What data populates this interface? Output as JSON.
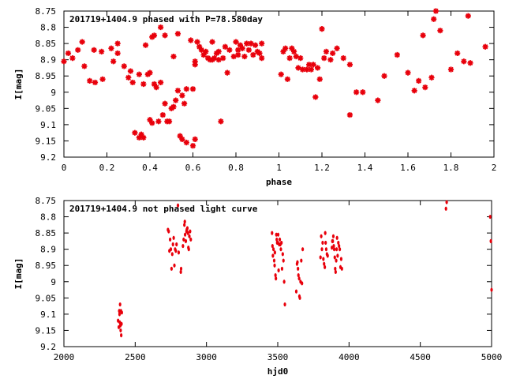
{
  "chart_data": [
    {
      "type": "scatter",
      "title": "201719+1404.9 phased with P=78.580day",
      "xlabel": "phase",
      "ylabel": "I[mag]",
      "xlim": [
        0,
        2
      ],
      "ylim": [
        8.75,
        9.2
      ],
      "y_inverted": true,
      "x_ticks": [
        "0",
        "0.2",
        "0.4",
        "0.6",
        "0.8",
        "1",
        "1.2",
        "1.4",
        "1.6",
        "1.8",
        "2"
      ],
      "y_ticks": [
        "8.75",
        "8.8",
        "8.85",
        "8.9",
        "8.95",
        "9",
        "9.05",
        "9.1",
        "9.15",
        "9.2"
      ],
      "grid": false,
      "marker": "asterisk",
      "color": "#e8000b",
      "points": [
        [
          0.0,
          8.905
        ],
        [
          0.02,
          8.88
        ],
        [
          0.04,
          8.895
        ],
        [
          0.065,
          8.87
        ],
        [
          0.085,
          8.845
        ],
        [
          0.095,
          8.92
        ],
        [
          0.12,
          8.965
        ],
        [
          0.14,
          8.87
        ],
        [
          0.145,
          8.97
        ],
        [
          0.175,
          8.875
        ],
        [
          0.18,
          8.96
        ],
        [
          0.22,
          8.865
        ],
        [
          0.23,
          8.905
        ],
        [
          0.25,
          8.85
        ],
        [
          0.25,
          8.88
        ],
        [
          0.28,
          8.92
        ],
        [
          0.3,
          8.955
        ],
        [
          0.31,
          8.935
        ],
        [
          0.32,
          8.97
        ],
        [
          0.33,
          9.125
        ],
        [
          0.35,
          8.945
        ],
        [
          0.35,
          9.14
        ],
        [
          0.36,
          9.13
        ],
        [
          0.37,
          8.975
        ],
        [
          0.37,
          9.14
        ],
        [
          0.38,
          8.855
        ],
        [
          0.39,
          8.945
        ],
        [
          0.4,
          8.94
        ],
        [
          0.4,
          9.085
        ],
        [
          0.41,
          8.83
        ],
        [
          0.41,
          9.095
        ],
        [
          0.42,
          8.825
        ],
        [
          0.42,
          8.975
        ],
        [
          0.43,
          8.985
        ],
        [
          0.44,
          9.09
        ],
        [
          0.45,
          8.97
        ],
        [
          0.45,
          8.8
        ],
        [
          0.46,
          9.07
        ],
        [
          0.47,
          8.825
        ],
        [
          0.47,
          9.035
        ],
        [
          0.48,
          9.09
        ],
        [
          0.49,
          9.09
        ],
        [
          0.5,
          9.05
        ],
        [
          0.51,
          9.045
        ],
        [
          0.51,
          8.89
        ],
        [
          0.52,
          9.025
        ],
        [
          0.53,
          8.82
        ],
        [
          0.53,
          8.995
        ],
        [
          0.54,
          9.135
        ],
        [
          0.55,
          9.01
        ],
        [
          0.55,
          9.145
        ],
        [
          0.56,
          9.035
        ],
        [
          0.57,
          9.155
        ],
        [
          0.57,
          8.99
        ],
        [
          0.59,
          8.84
        ],
        [
          0.6,
          8.99
        ],
        [
          0.6,
          9.165
        ],
        [
          0.61,
          9.145
        ],
        [
          0.61,
          8.905
        ],
        [
          0.61,
          8.915
        ],
        [
          0.62,
          8.845
        ],
        [
          0.63,
          8.86
        ],
        [
          0.64,
          8.87
        ],
        [
          0.65,
          8.885
        ],
        [
          0.66,
          8.875
        ],
        [
          0.67,
          8.895
        ],
        [
          0.68,
          8.9
        ],
        [
          0.69,
          8.845
        ],
        [
          0.69,
          8.9
        ],
        [
          0.7,
          8.895
        ],
        [
          0.71,
          8.88
        ],
        [
          0.72,
          8.9
        ],
        [
          0.72,
          8.875
        ],
        [
          0.73,
          9.09
        ],
        [
          0.74,
          8.895
        ],
        [
          0.75,
          8.86
        ],
        [
          0.76,
          8.94
        ],
        [
          0.77,
          8.87
        ],
        [
          0.79,
          8.89
        ],
        [
          0.8,
          8.845
        ],
        [
          0.81,
          8.885
        ],
        [
          0.81,
          8.87
        ],
        [
          0.82,
          8.855
        ],
        [
          0.83,
          8.865
        ],
        [
          0.84,
          8.89
        ],
        [
          0.85,
          8.85
        ],
        [
          0.86,
          8.87
        ],
        [
          0.87,
          8.85
        ],
        [
          0.88,
          8.885
        ],
        [
          0.89,
          8.855
        ],
        [
          0.9,
          8.875
        ],
        [
          0.91,
          8.88
        ],
        [
          0.92,
          8.85
        ],
        [
          0.92,
          8.895
        ],
        [
          1.01,
          8.945
        ],
        [
          1.02,
          8.875
        ],
        [
          1.03,
          8.865
        ],
        [
          1.04,
          8.96
        ],
        [
          1.05,
          8.895
        ],
        [
          1.06,
          8.865
        ],
        [
          1.07,
          8.875
        ],
        [
          1.08,
          8.89
        ],
        [
          1.09,
          8.925
        ],
        [
          1.1,
          8.895
        ],
        [
          1.11,
          8.93
        ],
        [
          1.13,
          8.93
        ],
        [
          1.14,
          8.915
        ],
        [
          1.15,
          8.93
        ],
        [
          1.16,
          8.915
        ],
        [
          1.17,
          9.015
        ],
        [
          1.18,
          8.925
        ],
        [
          1.19,
          8.96
        ],
        [
          1.2,
          8.805
        ],
        [
          1.21,
          8.895
        ],
        [
          1.22,
          8.875
        ],
        [
          1.24,
          8.9
        ],
        [
          1.25,
          8.88
        ],
        [
          1.27,
          8.865
        ],
        [
          1.3,
          8.895
        ],
        [
          1.33,
          9.07
        ],
        [
          1.33,
          8.915
        ],
        [
          1.36,
          9.0
        ],
        [
          1.39,
          9.0
        ],
        [
          1.46,
          9.025
        ],
        [
          1.49,
          8.95
        ],
        [
          1.55,
          8.885
        ],
        [
          1.6,
          8.94
        ],
        [
          1.63,
          8.995
        ],
        [
          1.65,
          8.965
        ],
        [
          1.67,
          8.825
        ],
        [
          1.68,
          8.985
        ],
        [
          1.71,
          8.955
        ],
        [
          1.72,
          8.775
        ],
        [
          1.73,
          8.75
        ],
        [
          1.75,
          8.81
        ],
        [
          1.8,
          8.93
        ],
        [
          1.83,
          8.88
        ],
        [
          1.86,
          8.905
        ],
        [
          1.88,
          8.765
        ],
        [
          1.89,
          8.91
        ],
        [
          1.96,
          8.86
        ]
      ]
    },
    {
      "type": "scatter",
      "title": "201719+1404.9 not phased light curve",
      "xlabel": "hjd0",
      "ylabel": "I[mag]",
      "xlim": [
        2000,
        5000
      ],
      "ylim": [
        8.75,
        9.2
      ],
      "y_inverted": true,
      "x_ticks": [
        "2000",
        "2500",
        "3000",
        "3500",
        "4000",
        "4500",
        "5000"
      ],
      "y_ticks": [
        "8.75",
        "8.8",
        "8.85",
        "8.9",
        "8.95",
        "9",
        "9.05",
        "9.1",
        "9.15",
        "9.2"
      ],
      "grid": false,
      "marker": "dot",
      "color": "#e8000b",
      "points": [
        [
          2380,
          9.12
        ],
        [
          2385,
          9.14
        ],
        [
          2388,
          9.09
        ],
        [
          2390,
          9.1
        ],
        [
          2392,
          9.125
        ],
        [
          2394,
          9.07
        ],
        [
          2396,
          9.135
        ],
        [
          2398,
          9.15
        ],
        [
          2400,
          9.09
        ],
        [
          2402,
          9.165
        ],
        [
          2404,
          9.13
        ],
        [
          2406,
          9.095
        ],
        [
          2730,
          8.84
        ],
        [
          2735,
          8.845
        ],
        [
          2740,
          8.905
        ],
        [
          2745,
          8.87
        ],
        [
          2750,
          8.9
        ],
        [
          2755,
          8.96
        ],
        [
          2760,
          8.915
        ],
        [
          2765,
          8.885
        ],
        [
          2770,
          8.865
        ],
        [
          2775,
          8.95
        ],
        [
          2780,
          8.9
        ],
        [
          2785,
          8.905
        ],
        [
          2790,
          8.885
        ],
        [
          2800,
          8.765
        ],
        [
          2805,
          8.91
        ],
        [
          2820,
          8.97
        ],
        [
          2822,
          8.96
        ],
        [
          2835,
          8.89
        ],
        [
          2840,
          8.87
        ],
        [
          2845,
          8.825
        ],
        [
          2848,
          8.815
        ],
        [
          2850,
          8.855
        ],
        [
          2855,
          8.875
        ],
        [
          2860,
          8.845
        ],
        [
          2862,
          8.84
        ],
        [
          2866,
          8.835
        ],
        [
          2870,
          8.85
        ],
        [
          2873,
          8.895
        ],
        [
          2876,
          8.9
        ],
        [
          2880,
          8.86
        ],
        [
          2885,
          8.845
        ],
        [
          2890,
          8.87
        ],
        [
          3460,
          8.85
        ],
        [
          3463,
          8.89
        ],
        [
          3466,
          8.92
        ],
        [
          3470,
          8.9
        ],
        [
          3475,
          8.935
        ],
        [
          3478,
          8.95
        ],
        [
          3480,
          8.91
        ],
        [
          3484,
          8.98
        ],
        [
          3487,
          8.99
        ],
        [
          3490,
          8.855
        ],
        [
          3493,
          8.87
        ],
        [
          3496,
          8.88
        ],
        [
          3500,
          8.88
        ],
        [
          3503,
          8.855
        ],
        [
          3506,
          8.965
        ],
        [
          3510,
          8.885
        ],
        [
          3514,
          8.87
        ],
        [
          3518,
          8.885
        ],
        [
          3522,
          8.9
        ],
        [
          3526,
          8.88
        ],
        [
          3530,
          8.96
        ],
        [
          3535,
          8.915
        ],
        [
          3540,
          8.935
        ],
        [
          3545,
          9.0
        ],
        [
          3550,
          9.07
        ],
        [
          3630,
          9.03
        ],
        [
          3635,
          8.945
        ],
        [
          3638,
          8.94
        ],
        [
          3642,
          8.96
        ],
        [
          3645,
          8.98
        ],
        [
          3650,
          8.99
        ],
        [
          3652,
          9.045
        ],
        [
          3655,
          9.05
        ],
        [
          3660,
          9.0
        ],
        [
          3665,
          8.935
        ],
        [
          3670,
          9.005
        ],
        [
          3675,
          8.9
        ],
        [
          3800,
          8.925
        ],
        [
          3805,
          8.86
        ],
        [
          3810,
          8.9
        ],
        [
          3815,
          8.88
        ],
        [
          3820,
          8.93
        ],
        [
          3825,
          8.945
        ],
        [
          3830,
          8.955
        ],
        [
          3833,
          8.85
        ],
        [
          3836,
          8.88
        ],
        [
          3840,
          8.9
        ],
        [
          3845,
          8.915
        ],
        [
          3850,
          8.92
        ],
        [
          3880,
          8.895
        ],
        [
          3883,
          8.875
        ],
        [
          3886,
          8.875
        ],
        [
          3890,
          8.86
        ],
        [
          3893,
          8.89
        ],
        [
          3896,
          8.9
        ],
        [
          3900,
          8.925
        ],
        [
          3903,
          8.96
        ],
        [
          3906,
          8.97
        ],
        [
          3910,
          8.935
        ],
        [
          3913,
          8.9
        ],
        [
          3916,
          8.865
        ],
        [
          3920,
          8.92
        ],
        [
          3925,
          8.88
        ],
        [
          3930,
          8.89
        ],
        [
          3935,
          8.9
        ],
        [
          3940,
          8.955
        ],
        [
          3945,
          8.93
        ],
        [
          3950,
          8.96
        ],
        [
          4680,
          8.775
        ],
        [
          4685,
          8.755
        ],
        [
          4990,
          8.8
        ],
        [
          4995,
          8.875
        ],
        [
          5000,
          9.025
        ]
      ]
    }
  ]
}
